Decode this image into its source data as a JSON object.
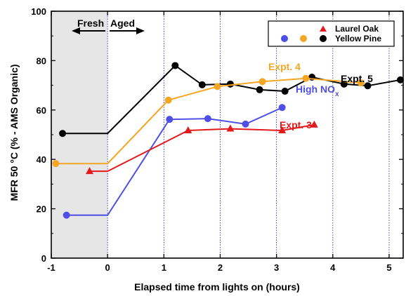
{
  "chart_data": {
    "type": "line",
    "xlabel": "Elapsed time from lights on (hours)",
    "ylabel": "MFR 50 °C (% - AMS Organic)",
    "xlim": [
      -1,
      5.25
    ],
    "ylim": [
      0,
      100
    ],
    "x_ticks": [
      "-1",
      "0",
      "1",
      "2",
      "3",
      "4",
      "5"
    ],
    "y_ticks": [
      "0",
      "20",
      "40",
      "60",
      "80",
      "100"
    ],
    "grid": "dotted vertical lines at each hour",
    "shaded_region": {
      "from": -1,
      "to": 0,
      "color": "#e6e6e6"
    },
    "phase_labels": {
      "left": "Fresh",
      "right": "Aged"
    },
    "legend": {
      "placement": "top-right",
      "entries": [
        {
          "label": "Laurel Oak",
          "marker": "triangle",
          "color": "#e31a1c"
        },
        {
          "label": "Yellow Pine",
          "marker": "circle",
          "colors": [
            "#4f4fe6",
            "#f5a623",
            "#000000"
          ]
        }
      ]
    },
    "series": [
      {
        "label": "Expt. 5",
        "color": "#000000",
        "marker": "circle",
        "points": [
          [
            -0.8,
            50.5
          ],
          [
            1.2,
            78
          ],
          [
            1.68,
            70.2
          ],
          [
            2.18,
            70.5
          ],
          [
            2.7,
            68.2
          ],
          [
            3.15,
            67.6
          ],
          [
            3.63,
            73.3
          ],
          [
            4.2,
            70.5
          ],
          [
            4.62,
            69.8
          ],
          [
            5.2,
            72.2
          ]
        ],
        "line": [
          [
            -0.8,
            50.5
          ],
          [
            0,
            50.5
          ],
          [
            1.2,
            78
          ],
          [
            1.68,
            70.2
          ],
          [
            2.18,
            70.5
          ],
          [
            2.7,
            68.2
          ],
          [
            3.15,
            67.6
          ],
          [
            3.63,
            73.3
          ],
          [
            4.2,
            70.5
          ],
          [
            4.62,
            69.8
          ],
          [
            5.2,
            72.2
          ]
        ]
      },
      {
        "label": "Expt. 4",
        "color": "#f5a623",
        "marker": "circle",
        "points": [
          [
            -0.92,
            38.3
          ],
          [
            1.08,
            64
          ],
          [
            1.95,
            69.5
          ],
          [
            2.75,
            71.5
          ],
          [
            3.52,
            72.8
          ],
          [
            4.5,
            71
          ]
        ],
        "line": [
          [
            -0.92,
            38.3
          ],
          [
            0,
            38.3
          ],
          [
            1.08,
            64
          ],
          [
            1.95,
            69.5
          ],
          [
            2.75,
            71.5
          ],
          [
            3.52,
            72.8
          ],
          [
            4.5,
            71
          ]
        ]
      },
      {
        "label": "High NOx",
        "color": "#4f4fe6",
        "marker": "circle",
        "points": [
          [
            -0.73,
            17.4
          ],
          [
            1.1,
            56.2
          ],
          [
            1.78,
            56.5
          ],
          [
            2.45,
            54.3
          ],
          [
            3.1,
            61
          ]
        ],
        "line": [
          [
            -0.73,
            17.4
          ],
          [
            0,
            17.4
          ],
          [
            1.1,
            56.2
          ],
          [
            1.78,
            56.5
          ],
          [
            2.45,
            54.3
          ],
          [
            3.1,
            61
          ]
        ]
      },
      {
        "label": "Expt. 3",
        "color": "#e31a1c",
        "marker": "triangle",
        "points": [
          [
            -0.32,
            35.2
          ],
          [
            1.43,
            51.7
          ],
          [
            2.18,
            52.4
          ],
          [
            3.1,
            51.7
          ],
          [
            3.67,
            54
          ]
        ],
        "line": [
          [
            -0.32,
            35.2
          ],
          [
            0,
            35.2
          ],
          [
            1.43,
            51.7
          ],
          [
            2.18,
            52.4
          ],
          [
            3.1,
            51.7
          ],
          [
            3.67,
            54
          ]
        ]
      }
    ],
    "annotations": [
      {
        "text": "Expt. 4",
        "color": "#f5a623"
      },
      {
        "text": "High NO",
        "subscript": "x",
        "color": "#4f4fe6"
      },
      {
        "text": "Expt. 3",
        "color": "#e31a1c"
      },
      {
        "text": "Expt. 5",
        "color": "#000000"
      }
    ]
  }
}
